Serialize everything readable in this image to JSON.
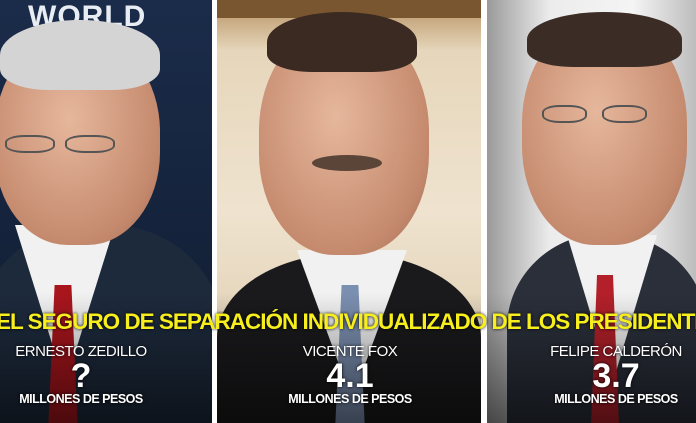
{
  "background_text": "WORLD",
  "title": "EL SEGURO DE SEPARACIÓN INDIVIDUALIZADO DE LOS PRESIDENTES",
  "presidents": [
    {
      "name": "ERNESTO ZEDILLO",
      "value": "?",
      "unit": "MILLONES DE PESOS"
    },
    {
      "name": "VICENTE FOX",
      "value": "4.1",
      "unit": "MILLONES DE PESOS"
    },
    {
      "name": "FELIPE CALDERÓN",
      "value": "3.7",
      "unit": "MILLONES DE PESOS"
    }
  ],
  "colors": {
    "title": "#f7ee1d",
    "text": "#ffffff"
  }
}
